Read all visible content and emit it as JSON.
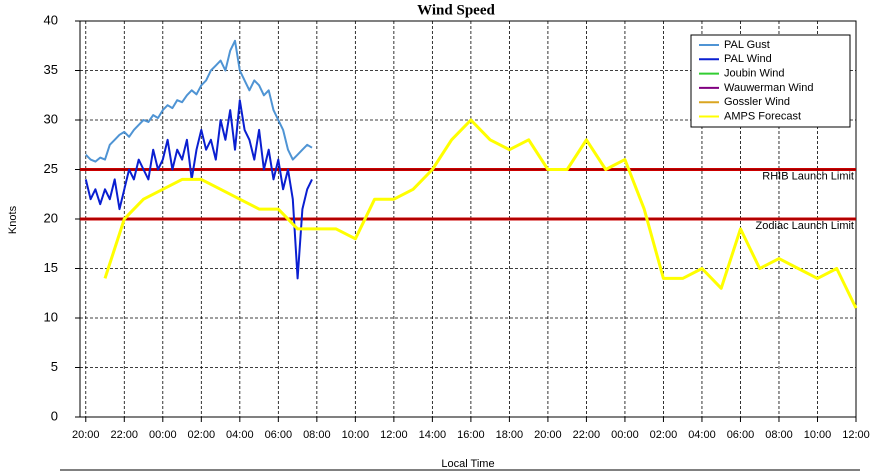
{
  "chart_data": {
    "type": "line",
    "title": "Wind Speed",
    "xlabel": "Local Time",
    "ylabel": "Knots",
    "xlim": [
      -0.3,
      40
    ],
    "ylim": [
      0,
      40
    ],
    "yticks": [
      0,
      5,
      10,
      15,
      20,
      25,
      30,
      35,
      40
    ],
    "xticks": [
      {
        "value": 0,
        "label": "20:00"
      },
      {
        "value": 2,
        "label": "22:00"
      },
      {
        "value": 4,
        "label": "00:00"
      },
      {
        "value": 6,
        "label": "02:00"
      },
      {
        "value": 8,
        "label": "04:00"
      },
      {
        "value": 10,
        "label": "06:00"
      },
      {
        "value": 12,
        "label": "08:00"
      },
      {
        "value": 14,
        "label": "10:00"
      },
      {
        "value": 16,
        "label": "12:00"
      },
      {
        "value": 18,
        "label": "14:00"
      },
      {
        "value": 20,
        "label": "16:00"
      },
      {
        "value": 22,
        "label": "18:00"
      },
      {
        "value": 24,
        "label": "20:00"
      },
      {
        "value": 26,
        "label": "22:00"
      },
      {
        "value": 28,
        "label": "00:00"
      },
      {
        "value": 30,
        "label": "02:00"
      },
      {
        "value": 32,
        "label": "04:00"
      },
      {
        "value": 34,
        "label": "06:00"
      },
      {
        "value": 36,
        "label": "08:00"
      },
      {
        "value": 38,
        "label": "10:00"
      },
      {
        "value": 40,
        "label": "12:00"
      }
    ],
    "grid": true,
    "legend": "upper right",
    "limits": [
      {
        "name": "RHIB Launch Limit",
        "value": 25,
        "color": "#cc0000"
      },
      {
        "name": "Zodiac Launch Limit",
        "value": 20,
        "color": "#cc0000"
      }
    ],
    "series": [
      {
        "name": "PAL Gust",
        "color": "#4f94d4",
        "x": [
          0,
          0.25,
          0.5,
          0.75,
          1,
          1.25,
          1.5,
          1.75,
          2,
          2.25,
          2.5,
          2.75,
          3,
          3.25,
          3.5,
          3.75,
          4,
          4.25,
          4.5,
          4.75,
          5,
          5.25,
          5.5,
          5.75,
          6,
          6.25,
          6.5,
          6.75,
          7,
          7.25,
          7.5,
          7.75,
          8,
          8.25,
          8.5,
          8.75,
          9,
          9.25,
          9.5,
          9.75,
          10,
          10.25,
          10.5,
          10.75,
          11,
          11.25,
          11.5,
          11.75
        ],
        "values": [
          26.5,
          26,
          25.8,
          26.2,
          26,
          27.5,
          28,
          28.5,
          28.8,
          28.3,
          29,
          29.5,
          30,
          29.8,
          30.5,
          30.2,
          31,
          31.5,
          31.2,
          32,
          31.8,
          32.5,
          33,
          32.6,
          33.5,
          34,
          35,
          35.5,
          36,
          35,
          37,
          38,
          35,
          34,
          33,
          34,
          33.5,
          32.5,
          33,
          31,
          30,
          29,
          27,
          26,
          26.5,
          27,
          27.5,
          27.2
        ]
      },
      {
        "name": "PAL Wind",
        "color": "#0a1fd1",
        "x": [
          0,
          0.25,
          0.5,
          0.75,
          1,
          1.25,
          1.5,
          1.75,
          2,
          2.25,
          2.5,
          2.75,
          3,
          3.25,
          3.5,
          3.75,
          4,
          4.25,
          4.5,
          4.75,
          5,
          5.25,
          5.5,
          5.75,
          6,
          6.25,
          6.5,
          6.75,
          7,
          7.25,
          7.5,
          7.75,
          8,
          8.25,
          8.5,
          8.75,
          9,
          9.25,
          9.5,
          9.75,
          10,
          10.25,
          10.5,
          10.75,
          11,
          11.25,
          11.5,
          11.75
        ],
        "values": [
          24,
          22,
          23,
          21.5,
          23,
          22,
          24,
          21,
          23,
          25,
          24,
          26,
          25,
          24,
          27,
          25,
          26,
          28,
          25,
          27,
          26,
          28,
          24,
          27,
          29,
          27,
          28,
          26,
          30,
          28,
          31,
          27,
          32,
          29,
          28,
          26,
          29,
          25,
          27,
          24,
          26,
          23,
          25,
          22,
          14,
          21,
          23,
          24
        ]
      },
      {
        "name": "Joubin Wind",
        "color": "#32cd32",
        "x": [],
        "values": []
      },
      {
        "name": "Wauwerman Wind",
        "color": "#800080",
        "x": [],
        "values": []
      },
      {
        "name": "Gossler Wind",
        "color": "#daa520",
        "x": [],
        "values": []
      },
      {
        "name": "AMPS Forecast",
        "color": "#ffff00",
        "x": [
          1,
          2,
          3,
          4,
          5,
          6,
          7,
          8,
          9,
          10,
          11,
          12,
          13,
          14,
          15,
          16,
          17,
          18,
          19,
          20,
          21,
          22,
          23,
          24,
          25,
          26,
          27,
          28,
          29,
          30,
          31,
          32,
          33,
          34,
          35,
          36,
          37,
          38,
          39,
          40
        ],
        "values": [
          14,
          20,
          22,
          23,
          24,
          24,
          23,
          22,
          21,
          21,
          19,
          19,
          19,
          18,
          22,
          22,
          23,
          25,
          28,
          30,
          28,
          27,
          28,
          25,
          25,
          28,
          25,
          26,
          21,
          14,
          14,
          15,
          13,
          19,
          15,
          16,
          15,
          14,
          15,
          11
        ]
      }
    ]
  }
}
